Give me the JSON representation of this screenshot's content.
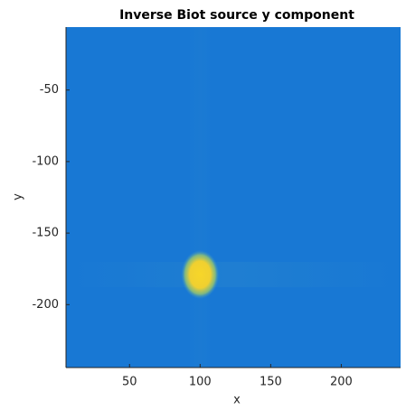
{
  "chart_data": {
    "type": "image",
    "title": "Inverse Biot source y component",
    "x_label": "x",
    "y_label": "y",
    "xlim": [
      5,
      242
    ],
    "ylim": [
      -244,
      -6
    ],
    "xticks": [
      50,
      100,
      150,
      200
    ],
    "yticks": [
      -50,
      -100,
      -150,
      -200
    ],
    "background_color": "#1878d4",
    "points": [
      {
        "x": 100,
        "y": -179,
        "color": "#f7d629"
      }
    ]
  }
}
